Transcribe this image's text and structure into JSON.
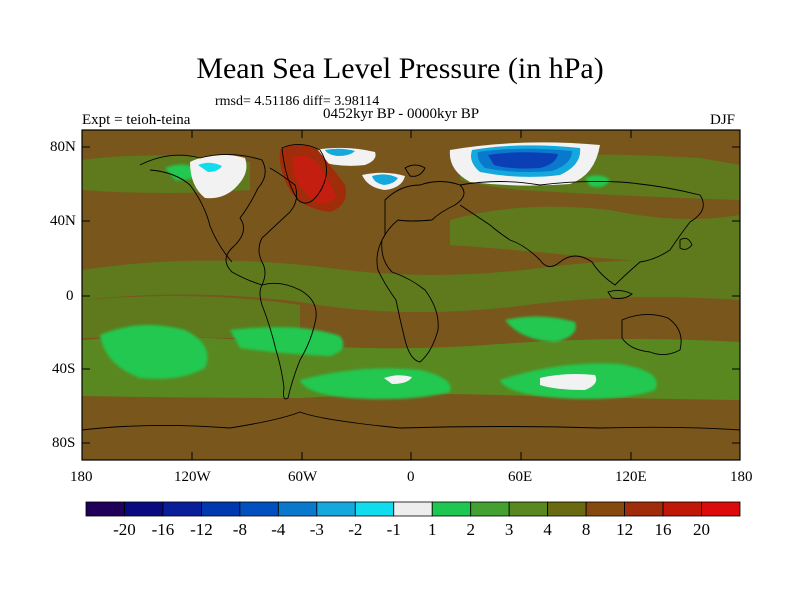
{
  "title": "Mean Sea Level Pressure (in hPa)",
  "stats": "rmsd= 4.51186 diff= 3.98114",
  "period": "0452kyr BP - 0000kyr BP",
  "experiment": "Expt = teioh-teina",
  "season": "DJF",
  "lat_labels": [
    "80N",
    "40N",
    "0",
    "40S",
    "80S"
  ],
  "lon_labels": [
    "180",
    "120W",
    "60W",
    "0",
    "60E",
    "120E",
    "180"
  ],
  "colorbar": {
    "labels": [
      "-20",
      "-16",
      "-12",
      "-8",
      "-4",
      "-3",
      "-2",
      "-1",
      "1",
      "2",
      "3",
      "4",
      "8",
      "12",
      "16",
      "20"
    ],
    "colors": [
      "#200058",
      "#0a0a80",
      "#0a1e9a",
      "#0038b0",
      "#0050c0",
      "#0a78cc",
      "#14a8dd",
      "#10dcee",
      "#eeeeee",
      "#1ec850",
      "#44a030",
      "#5a8820",
      "#6a6a10",
      "#864a10",
      "#a02c0a",
      "#c01808",
      "#dc0a0a"
    ]
  },
  "colors": {
    "background": "#79561c",
    "green": "#5a8820",
    "light_green": "#20c850",
    "white": "#f2f2f2",
    "blue": "#0a3fb5",
    "cyan": "#14a8dd",
    "red": "#c41e10"
  }
}
